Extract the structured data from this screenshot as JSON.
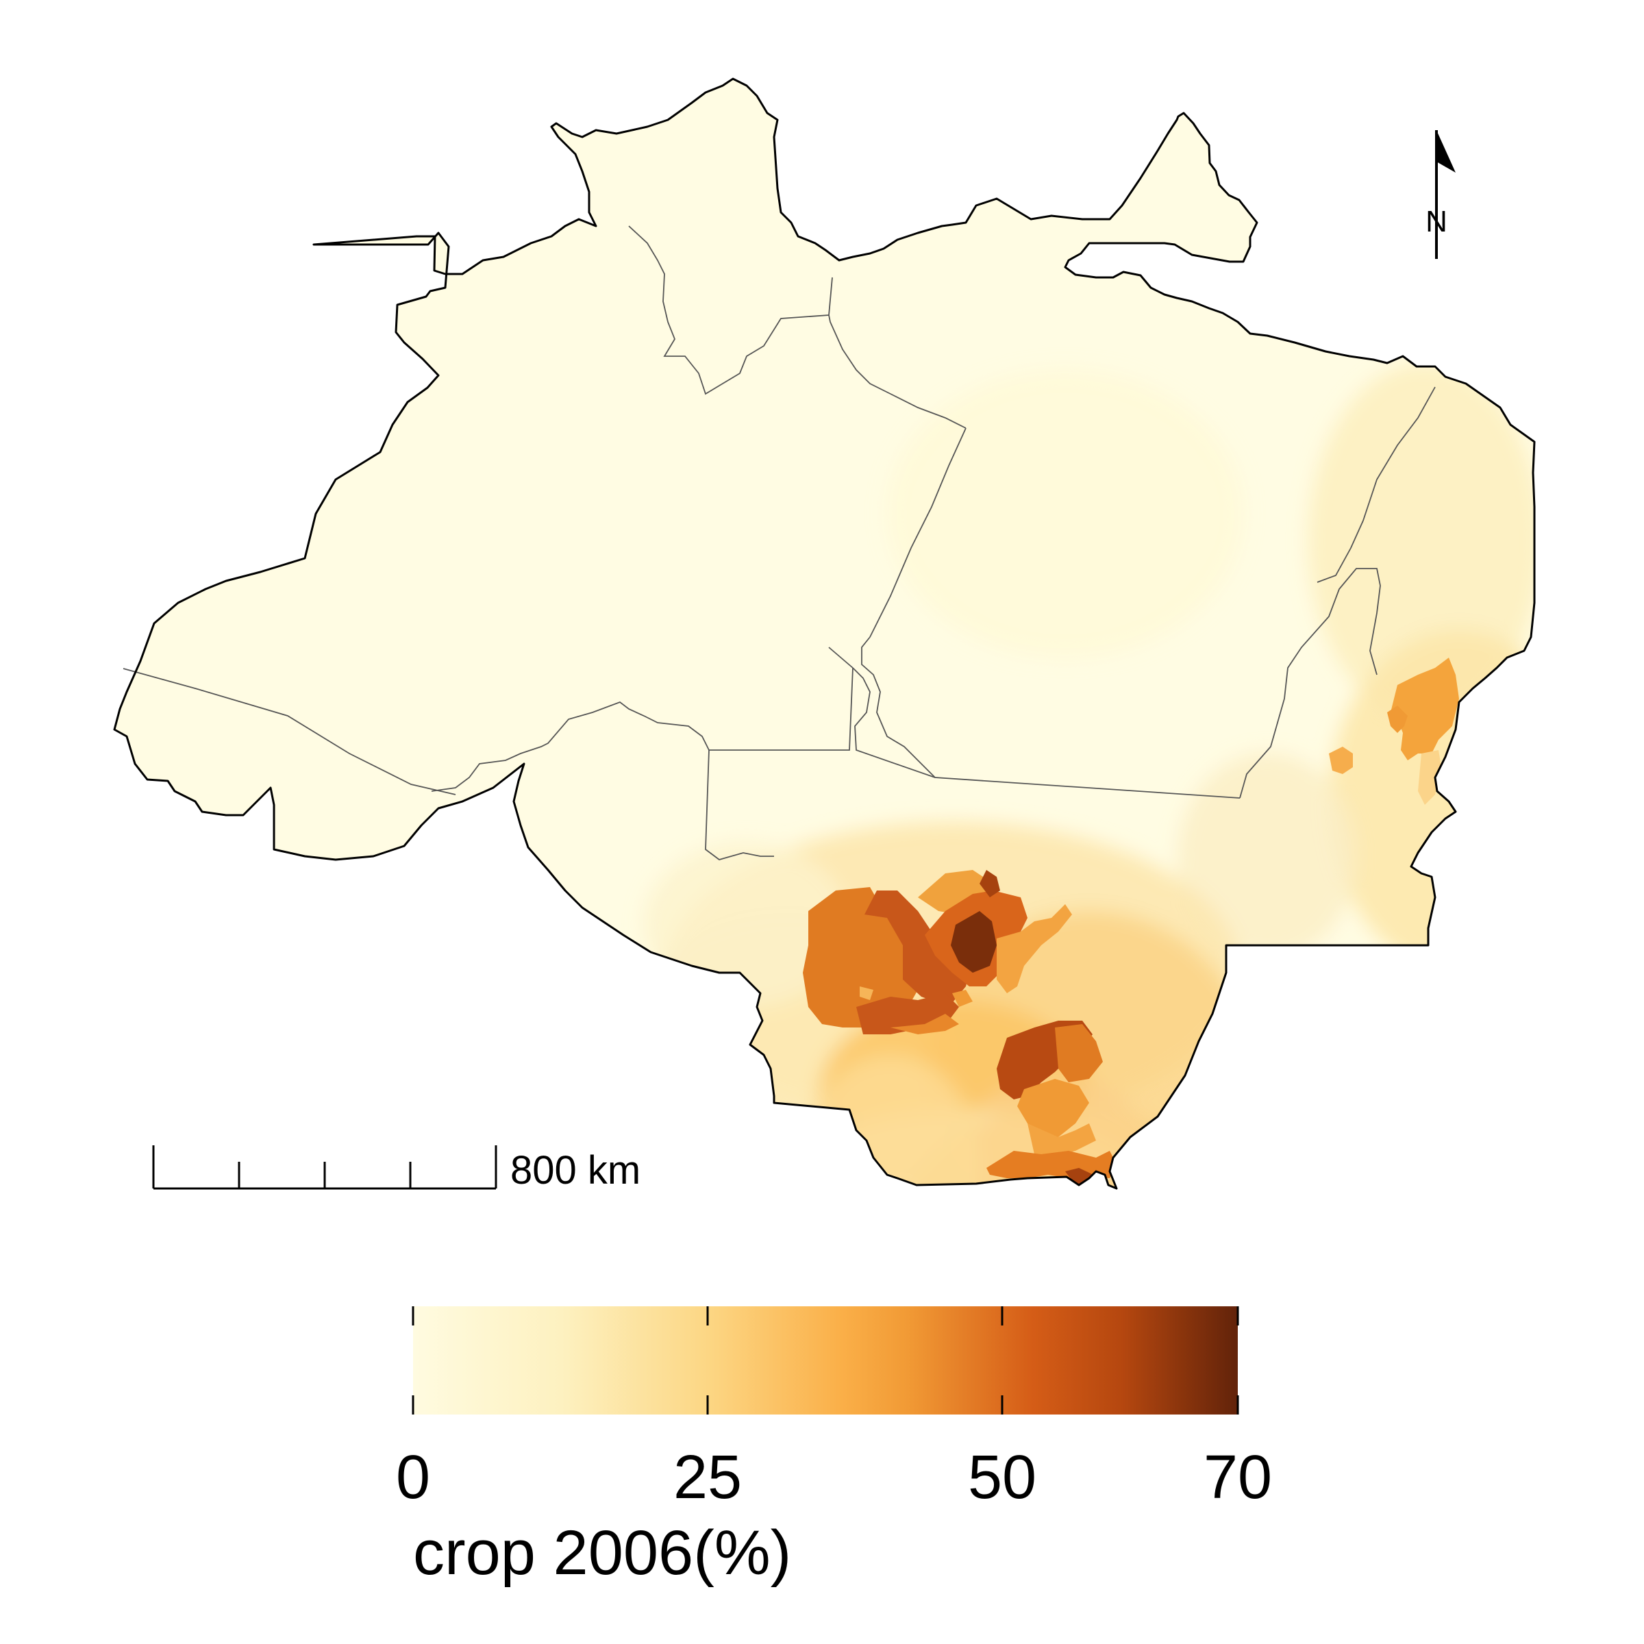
{
  "map": {
    "colors": {
      "background": "#ffffff",
      "land_base": "#fffce3",
      "outline": "#000000",
      "internal_border": "#555555",
      "ramp": [
        "#fffbe0",
        "#fde9a8",
        "#fbc35f",
        "#f19a35",
        "#d8671c",
        "#a6420f",
        "#62230a"
      ]
    },
    "north_arrow": {
      "label": "N",
      "icon": "north-arrow-icon"
    },
    "scale_bar": {
      "label": "800 km",
      "segments": 4
    }
  },
  "legend": {
    "title": "crop 2006(%)",
    "type": "continuous",
    "range": [
      0,
      70
    ],
    "ticks": [
      {
        "value": 0,
        "label": "0"
      },
      {
        "value": 25,
        "label": "25"
      },
      {
        "value": 50,
        "label": "50"
      },
      {
        "value": 70,
        "label": "70"
      }
    ]
  }
}
